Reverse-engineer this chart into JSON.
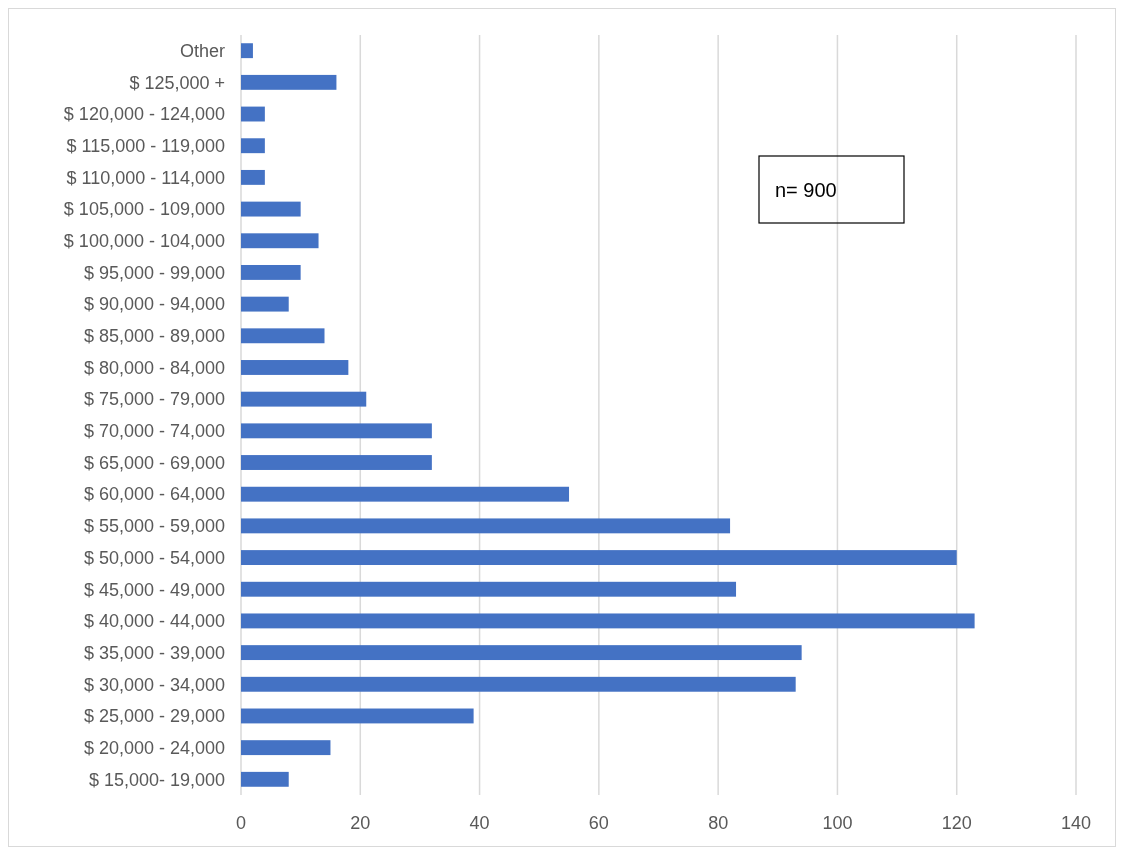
{
  "chart_data": {
    "type": "bar",
    "orientation": "horizontal",
    "categories": [
      "Other",
      "$ 125,000 +",
      "$ 120,000 - 124,000",
      "$ 115,000 - 119,000",
      "$ 110,000 - 114,000",
      "$ 105,000 - 109,000",
      "$ 100,000 - 104,000",
      "$ 95,000 - 99,000",
      "$ 90,000 - 94,000",
      "$ 85,000 - 89,000",
      "$ 80,000 - 84,000",
      "$ 75,000 - 79,000",
      "$ 70,000 - 74,000",
      "$ 65,000 - 69,000",
      "$ 60,000 - 64,000",
      "$ 55,000 - 59,000",
      "$ 50,000 - 54,000",
      "$ 45,000 - 49,000",
      "$ 40,000 - 44,000",
      "$ 35,000 - 39,000",
      "$ 30,000 - 34,000",
      "$ 25,000 - 29,000",
      "$ 20,000 - 24,000",
      "$ 15,000- 19,000"
    ],
    "values": [
      2,
      16,
      4,
      4,
      4,
      10,
      13,
      10,
      8,
      14,
      18,
      21,
      32,
      32,
      55,
      82,
      120,
      83,
      123,
      94,
      93,
      39,
      15,
      8
    ],
    "color": "#4472c4",
    "xlim": [
      0,
      140
    ],
    "xticks": [
      0,
      20,
      40,
      60,
      80,
      100,
      120,
      140
    ],
    "grid": "x",
    "annotations": [
      "n= 900"
    ]
  }
}
